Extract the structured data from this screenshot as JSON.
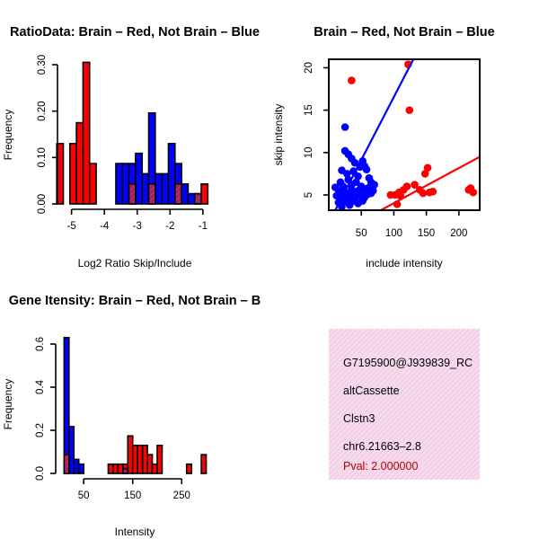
{
  "colors": {
    "red": "#ff0000",
    "blue": "#0000ff",
    "purple": "#a02060",
    "info_bg": "#f7dcee"
  },
  "chart_data": [
    {
      "type": "bar",
      "subtype": "histogram",
      "title": "RatioData: Brain – Red, Not Brain – Blue",
      "xlabel": "Log2 Ratio Skip/Include",
      "ylabel": "Frequency",
      "xlim": [
        -5.4,
        -0.75
      ],
      "ylim": [
        0,
        0.3
      ],
      "xticks": [
        "-5",
        "-4",
        "-3",
        "-2",
        "-1"
      ],
      "yticks": [
        "0.00",
        "0.10",
        "0.20",
        "0.30"
      ],
      "bin_width": 0.2,
      "series": [
        {
          "name": "Brain",
          "color": "red",
          "bins": [
            [
              -5.45,
              0.13
            ],
            [
              -5.05,
              0.13
            ],
            [
              -4.85,
              0.175
            ],
            [
              -4.65,
              0.305
            ],
            [
              -4.45,
              0.087
            ],
            [
              -3.25,
              0.043
            ],
            [
              -2.65,
              0.043
            ],
            [
              -1.85,
              0.043
            ],
            [
              -1.25,
              0.022
            ],
            [
              -1.05,
              0.043
            ]
          ]
        },
        {
          "name": "Not Brain",
          "color": "blue",
          "bins": [
            [
              -3.65,
              0.087
            ],
            [
              -3.45,
              0.087
            ],
            [
              -3.25,
              0.087
            ],
            [
              -3.05,
              0.109
            ],
            [
              -2.85,
              0.065
            ],
            [
              -2.65,
              0.196
            ],
            [
              -2.45,
              0.065
            ],
            [
              -2.25,
              0.065
            ],
            [
              -2.05,
              0.13
            ],
            [
              -1.85,
              0.087
            ],
            [
              -1.65,
              0.043
            ],
            [
              -1.45,
              0.022
            ],
            [
              -1.25,
              0.022
            ]
          ]
        }
      ]
    },
    {
      "type": "scatter",
      "title": "Brain – Red, Not Brain – Blue",
      "xlabel": "include intensity",
      "ylabel": "skip intensity",
      "xlim": [
        0,
        232
      ],
      "ylim": [
        3.2,
        21
      ],
      "xticks": [
        "50",
        "100",
        "150",
        "200"
      ],
      "yticks": [
        "5",
        "10",
        "15",
        "20"
      ],
      "series": [
        {
          "name": "Brain",
          "color": "red",
          "points": [
            [
              122,
              20.4
            ],
            [
              35,
              18.5
            ],
            [
              124,
              15
            ],
            [
              148,
              7.5
            ],
            [
              152,
              8.2
            ],
            [
              132,
              6.2
            ],
            [
              140,
              5.6
            ],
            [
              145,
              5.2
            ],
            [
              155,
              5.3
            ],
            [
              160,
              5.4
            ],
            [
              108,
              5.3
            ],
            [
              115,
              5.6
            ],
            [
              120,
              6
            ],
            [
              95,
              5
            ],
            [
              102,
              5
            ],
            [
              110,
              4.9
            ],
            [
              105,
              3.9
            ],
            [
              215,
              5.6
            ],
            [
              218,
              5.8
            ],
            [
              222,
              5.3
            ]
          ],
          "fit_line": [
            [
              80,
              3.2
            ],
            [
              232,
              9.5
            ]
          ]
        },
        {
          "name": "Not Brain",
          "color": "blue",
          "points": [
            [
              25,
              13
            ],
            [
              25,
              10.2
            ],
            [
              30,
              9.8
            ],
            [
              35,
              9.3
            ],
            [
              40,
              8.8
            ],
            [
              48,
              8.3
            ],
            [
              52,
              9
            ],
            [
              55,
              8.4
            ],
            [
              20,
              7.9
            ],
            [
              28,
              7.5
            ],
            [
              38,
              7.8
            ],
            [
              45,
              7.2
            ],
            [
              58,
              8
            ],
            [
              62,
              7
            ],
            [
              65,
              6.5
            ],
            [
              70,
              6.2
            ],
            [
              18,
              6.5
            ],
            [
              22,
              6
            ],
            [
              30,
              6.8
            ],
            [
              35,
              6.2
            ],
            [
              42,
              6.5
            ],
            [
              50,
              6
            ],
            [
              55,
              5.5
            ],
            [
              60,
              5.8
            ],
            [
              68,
              5.5
            ],
            [
              15,
              5.2
            ],
            [
              20,
              5.5
            ],
            [
              25,
              5
            ],
            [
              30,
              5.2
            ],
            [
              35,
              5.6
            ],
            [
              40,
              5.3
            ],
            [
              45,
              5.5
            ],
            [
              50,
              5
            ],
            [
              18,
              4.6
            ],
            [
              22,
              4.4
            ],
            [
              28,
              4.5
            ],
            [
              33,
              4.6
            ],
            [
              38,
              4.3
            ],
            [
              42,
              4.8
            ],
            [
              55,
              4.7
            ],
            [
              60,
              5.1
            ],
            [
              65,
              5.2
            ],
            [
              12,
              4.9
            ],
            [
              15,
              4.1
            ],
            [
              25,
              4.2
            ],
            [
              32,
              3.8
            ],
            [
              45,
              4
            ],
            [
              52,
              4.3
            ],
            [
              20,
              3.6
            ],
            [
              10,
              5.9
            ]
          ],
          "fit_line": [
            [
              10,
              3.2
            ],
            [
              130,
              21
            ]
          ]
        }
      ]
    },
    {
      "type": "bar",
      "subtype": "histogram",
      "title": "Gene Itensity: Brain – Red, Not Brain – B",
      "xlabel": "Intensity",
      "ylabel": "Frequency",
      "xlim": [
        2,
        310
      ],
      "ylim": [
        0,
        0.65
      ],
      "xticks": [
        "50",
        "150",
        "250"
      ],
      "yticks": [
        "0.0",
        "0.2",
        "0.4",
        "0.6"
      ],
      "bin_width": 10,
      "series": [
        {
          "name": "Brain",
          "color": "red",
          "bins": [
            [
              10,
              0.087
            ],
            [
              100,
              0.043
            ],
            [
              110,
              0.043
            ],
            [
              120,
              0.043
            ],
            [
              130,
              0.043
            ],
            [
              140,
              0.174
            ],
            [
              150,
              0.13
            ],
            [
              160,
              0.13
            ],
            [
              170,
              0.13
            ],
            [
              180,
              0.087
            ],
            [
              190,
              0.043
            ],
            [
              200,
              0.13
            ],
            [
              260,
              0.043
            ],
            [
              290,
              0.087
            ]
          ]
        },
        {
          "name": "Not Brain",
          "color": "blue",
          "bins": [
            [
              10,
              0.63
            ],
            [
              20,
              0.217
            ],
            [
              30,
              0.065
            ],
            [
              40,
              0.043
            ],
            [
              130,
              0.022
            ]
          ]
        }
      ]
    }
  ],
  "info_panel": {
    "lines": [
      "G7195900@J939839_RC",
      "altCassette",
      "Clstn3",
      "chr6.21663–2.8"
    ],
    "pval": "Pval: 2.000000"
  }
}
